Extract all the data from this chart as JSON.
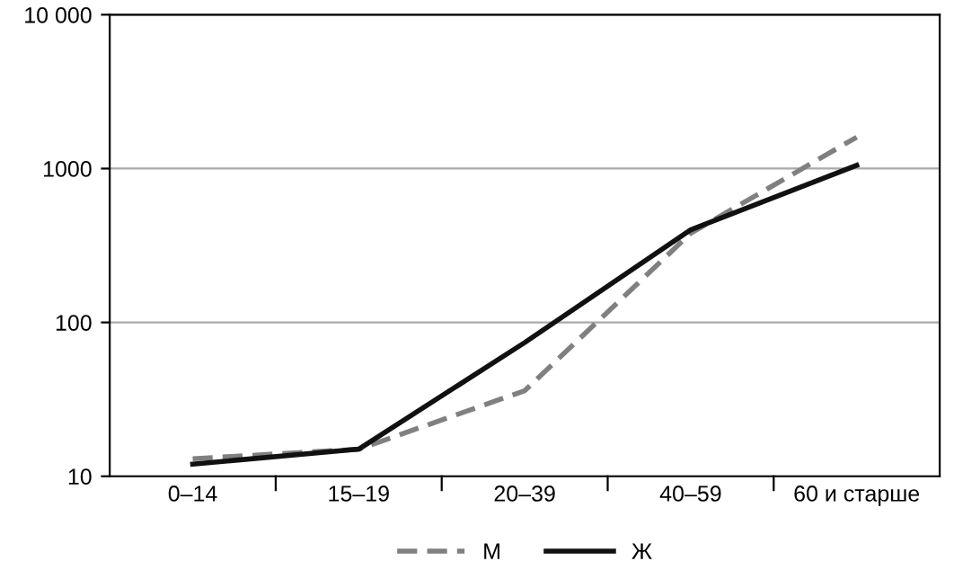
{
  "chart_data": {
    "type": "line",
    "log": "y",
    "categories": [
      "0–14",
      "15–19",
      "20–39",
      "40–59",
      "60 и старше"
    ],
    "series": [
      {
        "name": "М",
        "color": "#808080",
        "line_style": "dashed",
        "values": [
          13,
          15,
          36,
          380,
          1600
        ]
      },
      {
        "name": "Ж",
        "color": "#111111",
        "line_style": "solid",
        "values": [
          12,
          15,
          74,
          400,
          1050
        ]
      }
    ],
    "ylim": [
      10,
      10000
    ],
    "yticks": [
      10,
      100,
      1000,
      {
        "value": 10000,
        "label": "10 000"
      }
    ],
    "grid": "y",
    "legend": "bottom",
    "marker": "none"
  }
}
